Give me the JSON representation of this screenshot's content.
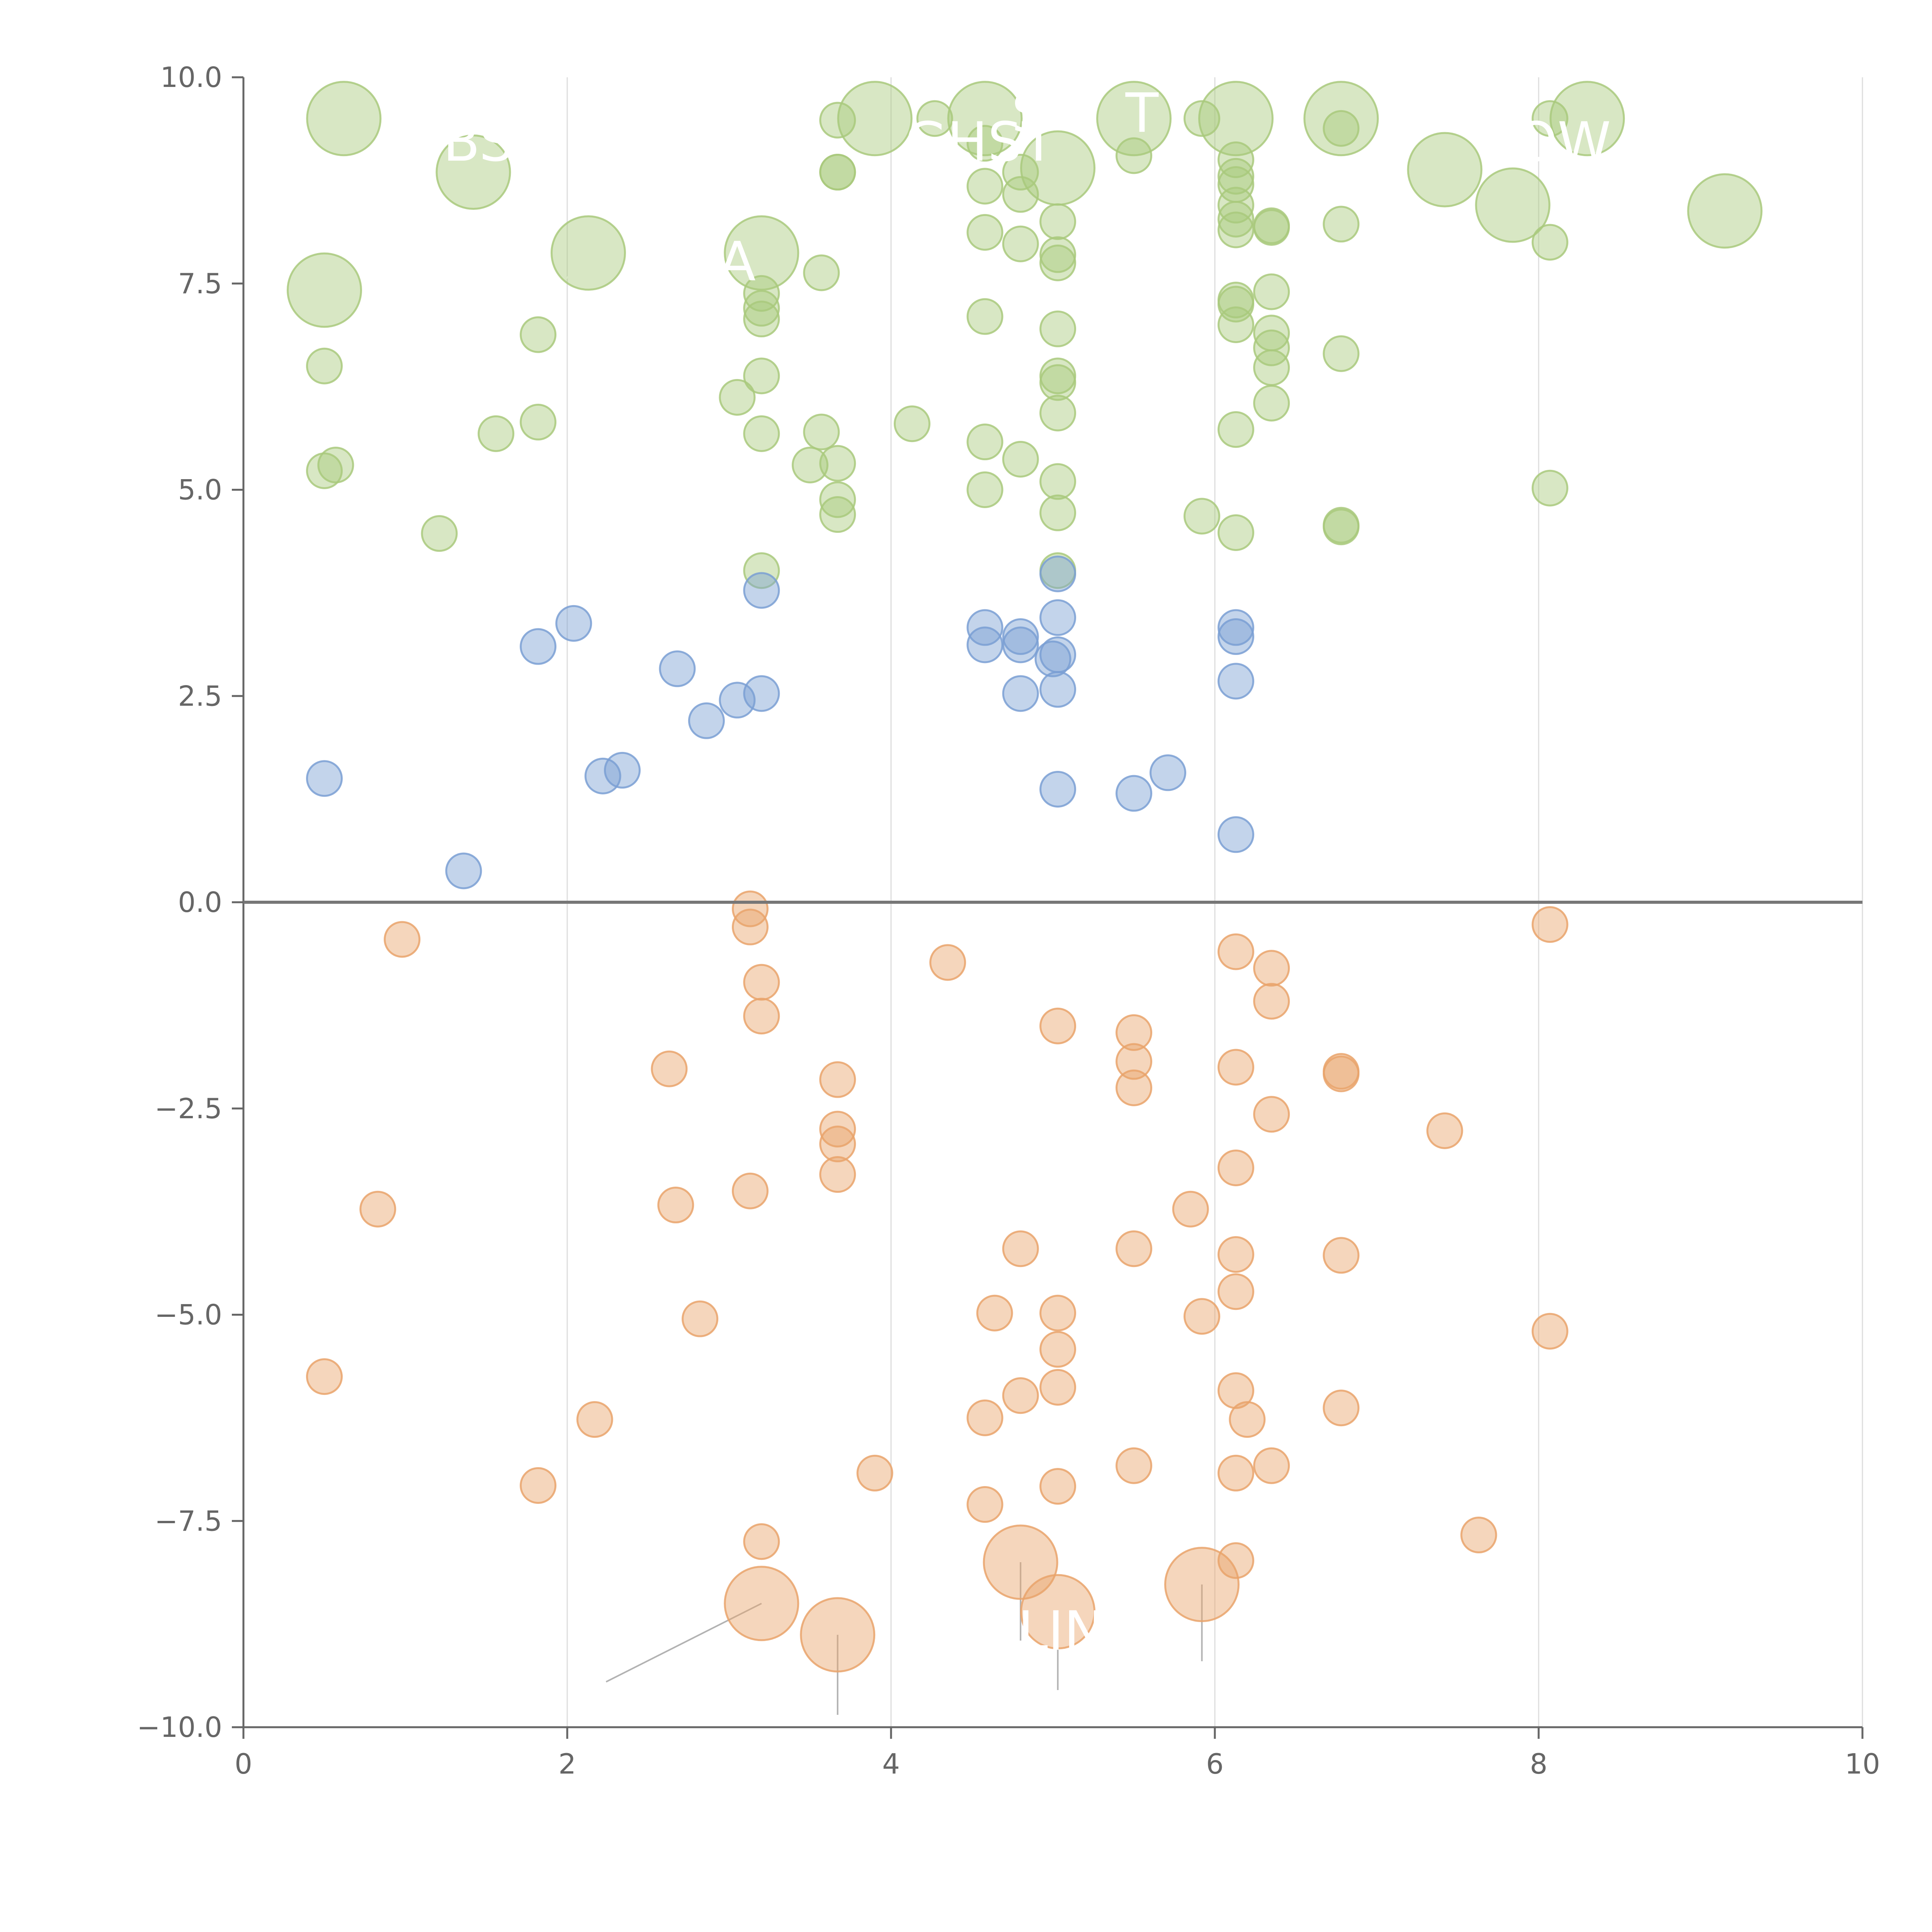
{
  "chart_data": {
    "type": "scatter",
    "title": "",
    "xlabel": "",
    "ylabel": "",
    "xlim": [
      0,
      10
    ],
    "ylim": [
      -10,
      10
    ],
    "x_ticks": [
      0,
      2,
      4,
      6,
      8,
      10
    ],
    "x_tick_labels": [
      "0",
      "2",
      "4",
      "6",
      "8",
      "10"
    ],
    "y_ticks": [
      10,
      7.5,
      5,
      2.5,
      0,
      -2.5,
      -5,
      -7.5,
      -10
    ],
    "y_tick_labels": [
      "10.0",
      "7.5",
      "5.0",
      "2.5",
      "0.0",
      "−2.5",
      "−5.0",
      "−7.5",
      "−10.0"
    ],
    "vertical_grid": true,
    "horizontal_grid": false,
    "zero_line": true,
    "series": [
      {
        "color": "#a9c97c",
        "points": [
          [
            0.62,
            9.5,
            2
          ],
          [
            1.42,
            8.85,
            2
          ],
          [
            2.13,
            7.87,
            2
          ],
          [
            0.5,
            7.42,
            2
          ],
          [
            3.2,
            7.87,
            2
          ],
          [
            3.9,
            9.5,
            2
          ],
          [
            4.58,
            9.5,
            2
          ],
          [
            5.03,
            8.9,
            2
          ],
          [
            5.5,
            9.5,
            2
          ],
          [
            6.13,
            9.5,
            2
          ],
          [
            6.78,
            9.5,
            2
          ],
          [
            7.42,
            8.88,
            2
          ],
          [
            7.84,
            8.45,
            2
          ],
          [
            8.3,
            9.5,
            2
          ],
          [
            9.15,
            8.38,
            2
          ],
          [
            3.67,
            9.48,
            1
          ],
          [
            4.27,
            9.5,
            1
          ],
          [
            5.92,
            9.5,
            1
          ],
          [
            8.07,
            9.5,
            1
          ],
          [
            5.5,
            9.05,
            1
          ],
          [
            4.58,
            9.2,
            1
          ],
          [
            3.67,
            8.85,
            1
          ],
          [
            3.67,
            8.85,
            1
          ],
          [
            4.8,
            8.85,
            1
          ],
          [
            4.58,
            8.68,
            1
          ],
          [
            4.8,
            8.58,
            1
          ],
          [
            4.58,
            8.12,
            1
          ],
          [
            4.8,
            7.98,
            1
          ],
          [
            5.03,
            8.25,
            1
          ],
          [
            5.03,
            7.85,
            1
          ],
          [
            5.03,
            7.75,
            1
          ],
          [
            6.13,
            9.0,
            1
          ],
          [
            6.13,
            8.8,
            1
          ],
          [
            6.13,
            8.7,
            1
          ],
          [
            6.13,
            8.45,
            1
          ],
          [
            6.13,
            8.28,
            1
          ],
          [
            6.13,
            8.15,
            1
          ],
          [
            6.35,
            8.2,
            1
          ],
          [
            6.35,
            8.18,
            1
          ],
          [
            6.78,
            9.38,
            1
          ],
          [
            6.78,
            8.22,
            1
          ],
          [
            8.07,
            8.0,
            1
          ],
          [
            3.2,
            7.38,
            1
          ],
          [
            3.2,
            7.2,
            1
          ],
          [
            3.2,
            7.07,
            1
          ],
          [
            3.57,
            7.63,
            1
          ],
          [
            1.82,
            6.88,
            1
          ],
          [
            0.5,
            6.5,
            1
          ],
          [
            3.2,
            6.38,
            1
          ],
          [
            3.05,
            6.12,
            1
          ],
          [
            4.58,
            7.1,
            1
          ],
          [
            5.03,
            6.95,
            1
          ],
          [
            5.03,
            6.38,
            1
          ],
          [
            5.03,
            6.3,
            1
          ],
          [
            6.13,
            7.3,
            1
          ],
          [
            6.13,
            7.25,
            1
          ],
          [
            6.13,
            7.0,
            1
          ],
          [
            6.35,
            7.4,
            1
          ],
          [
            6.35,
            6.9,
            1
          ],
          [
            6.35,
            6.72,
            1
          ],
          [
            6.35,
            6.48,
            1
          ],
          [
            6.78,
            6.65,
            1
          ],
          [
            1.82,
            5.82,
            1
          ],
          [
            1.56,
            5.68,
            1
          ],
          [
            0.57,
            5.3,
            1
          ],
          [
            0.5,
            5.23,
            1
          ],
          [
            3.2,
            5.68,
            1
          ],
          [
            3.57,
            5.7,
            1
          ],
          [
            3.67,
            5.32,
            1
          ],
          [
            3.5,
            5.3,
            1
          ],
          [
            4.13,
            5.8,
            1
          ],
          [
            4.58,
            5.58,
            1
          ],
          [
            4.8,
            5.37,
            1
          ],
          [
            5.03,
            5.93,
            1
          ],
          [
            4.58,
            5.0,
            1
          ],
          [
            5.03,
            5.1,
            1
          ],
          [
            5.03,
            4.72,
            1
          ],
          [
            6.13,
            5.73,
            1
          ],
          [
            6.35,
            6.05,
            1
          ],
          [
            3.67,
            4.88,
            1
          ],
          [
            3.67,
            4.7,
            1
          ],
          [
            1.21,
            4.47,
            1
          ],
          [
            3.2,
            4.02,
            1
          ],
          [
            5.03,
            4.02,
            1
          ],
          [
            5.92,
            4.68,
            1
          ],
          [
            6.13,
            4.48,
            1
          ],
          [
            6.78,
            4.57,
            1
          ],
          [
            6.78,
            4.55,
            1
          ],
          [
            8.07,
            5.02,
            1
          ]
        ]
      },
      {
        "color": "#7a9fd3",
        "points": [
          [
            0.5,
            1.5,
            1
          ],
          [
            1.36,
            0.38,
            1
          ],
          [
            1.82,
            3.1,
            1
          ],
          [
            2.04,
            3.38,
            1
          ],
          [
            2.22,
            1.53,
            1
          ],
          [
            2.34,
            1.6,
            1
          ],
          [
            2.68,
            2.83,
            1
          ],
          [
            2.86,
            2.2,
            1
          ],
          [
            3.05,
            2.45,
            1
          ],
          [
            3.2,
            2.53,
            1
          ],
          [
            3.2,
            3.78,
            1
          ],
          [
            4.58,
            3.33,
            1
          ],
          [
            4.58,
            3.12,
            1
          ],
          [
            4.8,
            3.22,
            1
          ],
          [
            4.8,
            3.12,
            1
          ],
          [
            4.8,
            2.53,
            1
          ],
          [
            5.0,
            2.95,
            1
          ],
          [
            5.03,
            3.45,
            1
          ],
          [
            5.03,
            3.0,
            1
          ],
          [
            5.03,
            2.58,
            1
          ],
          [
            5.03,
            3.98,
            1
          ],
          [
            5.03,
            1.37,
            1
          ],
          [
            5.5,
            1.32,
            1
          ],
          [
            5.71,
            1.57,
            1
          ],
          [
            6.13,
            3.33,
            1
          ],
          [
            6.13,
            3.22,
            1
          ],
          [
            6.13,
            2.68,
            1
          ],
          [
            6.13,
            0.82,
            1
          ]
        ]
      },
      {
        "color": "#e9a36b",
        "points": [
          [
            3.13,
            -0.08,
            1
          ],
          [
            3.13,
            -0.3,
            1
          ],
          [
            3.2,
            -0.97,
            1
          ],
          [
            3.2,
            -1.38,
            1
          ],
          [
            0.98,
            -0.45,
            1
          ],
          [
            4.35,
            -0.73,
            1
          ],
          [
            2.63,
            -2.02,
            1
          ],
          [
            3.67,
            -2.15,
            1
          ],
          [
            3.67,
            -2.75,
            1
          ],
          [
            3.67,
            -2.93,
            1
          ],
          [
            3.67,
            -3.3,
            1
          ],
          [
            3.13,
            -3.5,
            1
          ],
          [
            2.67,
            -3.67,
            1
          ],
          [
            0.83,
            -3.72,
            1
          ],
          [
            2.82,
            -5.05,
            1
          ],
          [
            0.5,
            -5.75,
            1
          ],
          [
            2.17,
            -6.27,
            1
          ],
          [
            1.82,
            -7.07,
            1
          ],
          [
            3.2,
            -7.75,
            1
          ],
          [
            3.9,
            -6.92,
            1
          ],
          [
            4.58,
            -6.25,
            1
          ],
          [
            4.58,
            -7.3,
            1
          ],
          [
            4.64,
            -4.98,
            1
          ],
          [
            4.8,
            -4.2,
            1
          ],
          [
            4.8,
            -5.98,
            1
          ],
          [
            5.03,
            -1.5,
            1
          ],
          [
            5.03,
            -4.98,
            1
          ],
          [
            5.03,
            -5.42,
            1
          ],
          [
            5.03,
            -5.88,
            1
          ],
          [
            5.03,
            -7.08,
            1
          ],
          [
            5.5,
            -1.58,
            1
          ],
          [
            5.5,
            -1.93,
            1
          ],
          [
            5.5,
            -2.25,
            1
          ],
          [
            5.5,
            -4.2,
            1
          ],
          [
            5.5,
            -6.83,
            1
          ],
          [
            5.85,
            -3.72,
            1
          ],
          [
            5.92,
            -5.02,
            1
          ],
          [
            6.13,
            -0.6,
            1
          ],
          [
            6.13,
            -2.0,
            1
          ],
          [
            6.13,
            -3.22,
            1
          ],
          [
            6.13,
            -4.27,
            1
          ],
          [
            6.13,
            -4.72,
            1
          ],
          [
            6.13,
            -5.92,
            1
          ],
          [
            6.13,
            -6.92,
            1
          ],
          [
            6.13,
            -7.98,
            1
          ],
          [
            6.2,
            -6.27,
            1
          ],
          [
            6.35,
            -0.8,
            1
          ],
          [
            6.35,
            -1.2,
            1
          ],
          [
            6.35,
            -2.57,
            1
          ],
          [
            6.35,
            -6.83,
            1
          ],
          [
            6.78,
            -2.05,
            1
          ],
          [
            6.78,
            -2.08,
            1
          ],
          [
            6.78,
            -4.28,
            1
          ],
          [
            6.78,
            -6.13,
            1
          ],
          [
            7.42,
            -2.77,
            1
          ],
          [
            7.63,
            -7.67,
            1
          ],
          [
            8.07,
            -0.27,
            1
          ],
          [
            8.07,
            -5.2,
            1
          ],
          [
            3.2,
            -8.5,
            2
          ],
          [
            3.67,
            -8.88,
            2
          ],
          [
            4.8,
            -8.0,
            2
          ],
          [
            5.03,
            -8.6,
            2
          ],
          [
            5.92,
            -8.27,
            2
          ]
        ]
      }
    ],
    "annotations": [
      {
        "text": "BS",
        "x": 1.45,
        "y": 9.2
      },
      {
        "text": "GHST",
        "x": 4.55,
        "y": 9.2
      },
      {
        "text": "S",
        "x": 4.85,
        "y": 9.55
      },
      {
        "text": "T",
        "x": 5.55,
        "y": 9.55
      },
      {
        "text": "A",
        "x": 3.05,
        "y": 7.75
      },
      {
        "text": "OW",
        "x": 8.15,
        "y": 9.2
      },
      {
        "text": "LIN",
        "x": 5.05,
        "y": -8.85
      }
    ],
    "leader_lines": [
      [
        0.63,
        9.5,
        0.66,
        9.15
      ],
      [
        1.42,
        8.85,
        1.5,
        9.0
      ],
      [
        2.13,
        7.87,
        1.75,
        7.0
      ],
      [
        0.5,
        7.42,
        0.72,
        7.25
      ],
      [
        3.2,
        7.87,
        3.05,
        6.0
      ],
      [
        3.9,
        9.5,
        3.65,
        8.9
      ],
      [
        4.58,
        9.5,
        4.22,
        9.6
      ],
      [
        5.03,
        8.9,
        4.6,
        9.2
      ],
      [
        5.5,
        9.5,
        5.5,
        9.0
      ],
      [
        5.5,
        9.5,
        5.92,
        9.5
      ],
      [
        6.78,
        9.5,
        6.8,
        9.3
      ],
      [
        7.42,
        8.88,
        7.65,
        9.0
      ],
      [
        7.84,
        8.45,
        7.7,
        8.3
      ],
      [
        8.3,
        9.5,
        8.05,
        9.4
      ],
      [
        9.15,
        8.38,
        9.3,
        8.6
      ],
      [
        3.2,
        -8.5,
        2.24,
        -9.45
      ],
      [
        3.67,
        -8.88,
        3.67,
        -9.85
      ],
      [
        4.8,
        -8.0,
        4.8,
        -8.95
      ],
      [
        5.03,
        -8.6,
        5.03,
        -9.55
      ],
      [
        5.92,
        -8.27,
        5.92,
        -9.2
      ]
    ]
  }
}
